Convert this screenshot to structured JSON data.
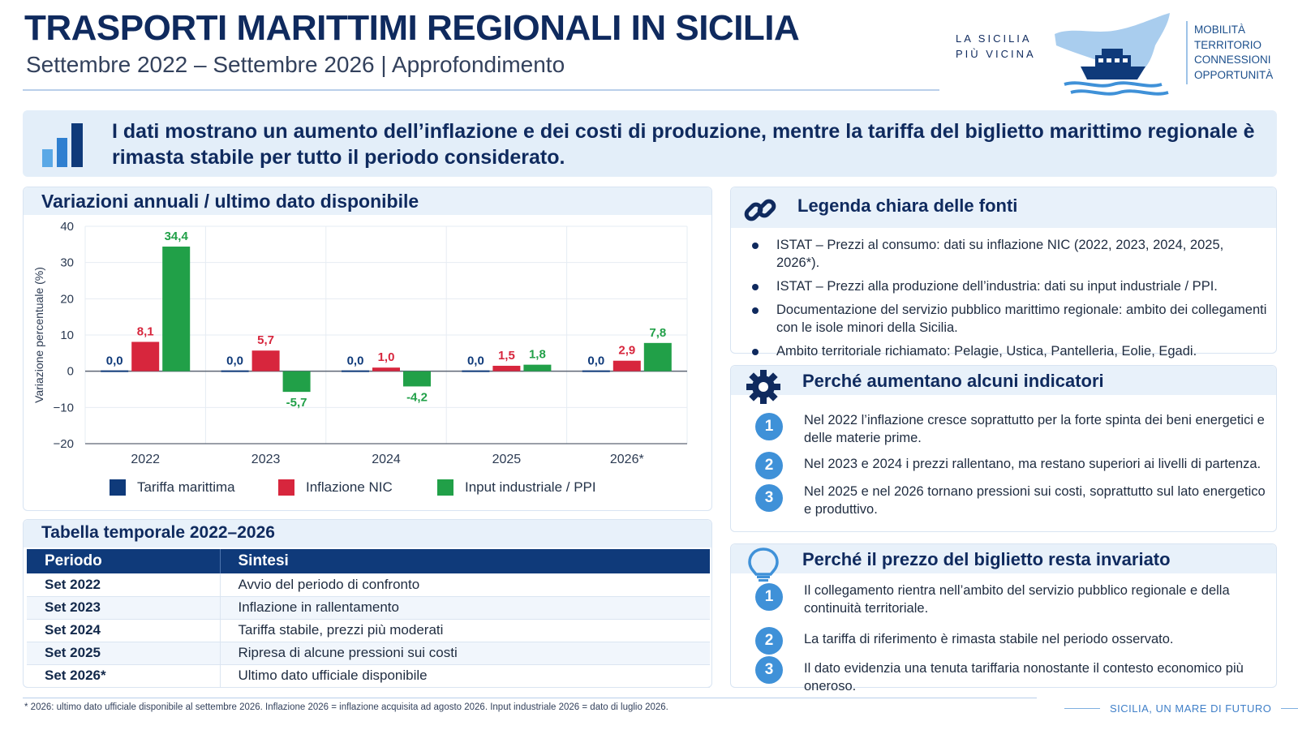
{
  "header": {
    "title": "TRASPORTI MARITTIMI REGIONALI IN SICILIA",
    "subtitle": "Settembre 2022 – Settembre 2026 | Approfondimento"
  },
  "brand": {
    "tagline_1": "LA SICILIA",
    "tagline_2": "PIÙ VICINA",
    "words": [
      "MOBILITÀ",
      "TERRITORIO",
      "CONNESSIONI",
      "OPPORTUNITÀ"
    ]
  },
  "banner": {
    "text": "I dati mostrano un aumento dell’inflazione e dei costi di produzione, mentre la tariffa del biglietto marittimo regionale è rimasta stabile per tutto il periodo considerato."
  },
  "chart_card": {
    "heading": "Variazioni annuali / ultimo dato disponibile"
  },
  "chart_data": {
    "type": "bar",
    "title": "Variazioni annuali / ultimo dato disponibile",
    "xlabel": "",
    "ylabel": "Variazione percentuale (%)",
    "ylim": [
      -20,
      40
    ],
    "yticks": [
      40,
      30,
      20,
      10,
      0,
      -10,
      -20
    ],
    "ytick_labels": [
      "40",
      "30",
      "20",
      "10",
      "0",
      "−10",
      "−20"
    ],
    "categories": [
      "2022",
      "2023",
      "2024",
      "2025",
      "2026*"
    ],
    "series": [
      {
        "name": "Tariffa marittima",
        "color": "#0f3a7a",
        "values": [
          0.0,
          0.0,
          0.0,
          0.0,
          0.0
        ],
        "labels": [
          "0,0",
          "0,0",
          "0,0",
          "0,0",
          "0,0"
        ]
      },
      {
        "name": "Inflazione NIC",
        "color": "#d7263d",
        "values": [
          8.1,
          5.7,
          1.0,
          1.5,
          2.9
        ],
        "labels": [
          "8,1",
          "5,7",
          "1,0",
          "1,5",
          "2,9"
        ]
      },
      {
        "name": "Input industriale / PPI",
        "color": "#21a048",
        "values": [
          34.4,
          -5.7,
          -4.2,
          1.8,
          7.8
        ],
        "labels": [
          "34,4",
          "-5,7",
          "-4,2",
          "1,8",
          "7,8"
        ]
      }
    ],
    "grid": true,
    "legend_position": "bottom"
  },
  "table": {
    "heading": "Tabella temporale 2022–2026",
    "columns": [
      "Periodo",
      "Sintesi"
    ],
    "rows": [
      [
        "Set 2022",
        "Avvio del periodo di confronto"
      ],
      [
        "Set 2023",
        "Inflazione in rallentamento"
      ],
      [
        "Set 2024",
        "Tariffa stabile, prezzi più moderati"
      ],
      [
        "Set 2025",
        "Ripresa di alcune pressioni sui costi"
      ],
      [
        "Set 2026*",
        "Ultimo dato ufficiale disponibile"
      ]
    ]
  },
  "sources": {
    "heading": "Legenda chiara delle fonti",
    "items": [
      "ISTAT – Prezzi al consumo: dati su inflazione NIC (2022, 2023, 2024, 2025, 2026*).",
      "ISTAT – Prezzi alla produzione dell’industria: dati su input industriale / PPI.",
      "Documentazione del servizio pubblico marittimo regionale: ambito dei collegamenti con le isole minori della Sicilia.",
      "Ambito territoriale richiamato: Pelagie, Ustica, Pantelleria, Eolie, Egadi."
    ]
  },
  "reasons_up": {
    "heading": "Perché aumentano alcuni indicatori",
    "items": [
      {
        "num": "1",
        "text": "Nel 2022 l’inflazione cresce soprattutto per la forte spinta dei beni energetici e delle materie prime."
      },
      {
        "num": "2",
        "text": "Nel 2023 e 2024 i prezzi rallentano, ma restano superiori ai livelli di partenza."
      },
      {
        "num": "3",
        "text": "Nel 2025 e nel 2026 tornano pressioni sui costi, soprattutto sul lato energetico e produttivo."
      }
    ]
  },
  "reasons_stable": {
    "heading": "Perché il prezzo del biglietto resta invariato",
    "items": [
      {
        "num": "1",
        "text": "Il collegamento rientra nell’ambito del servizio pubblico regionale e della continuità territoriale."
      },
      {
        "num": "2",
        "text": "La tariffa di riferimento è rimasta stabile nel periodo osservato."
      },
      {
        "num": "3",
        "text": "Il dato evidenzia una tenuta tariffaria nonostante il contesto economico più oneroso."
      }
    ]
  },
  "footer": {
    "note": "* 2026: ultimo dato ufficiale disponibile al settembre 2026. Inflazione 2026 = inflazione acquisita ad agosto 2026. Input industriale 2026 = dato di luglio 2026.",
    "brand": "SICILIA, UN MARE DI FUTURO"
  },
  "icons": {
    "banner": "bar-chart-icon",
    "sources": "link-icon",
    "reasons_up": "gear-icon",
    "reasons_stable": "lightbulb-icon",
    "logo": "sicily-ferry-logo"
  }
}
